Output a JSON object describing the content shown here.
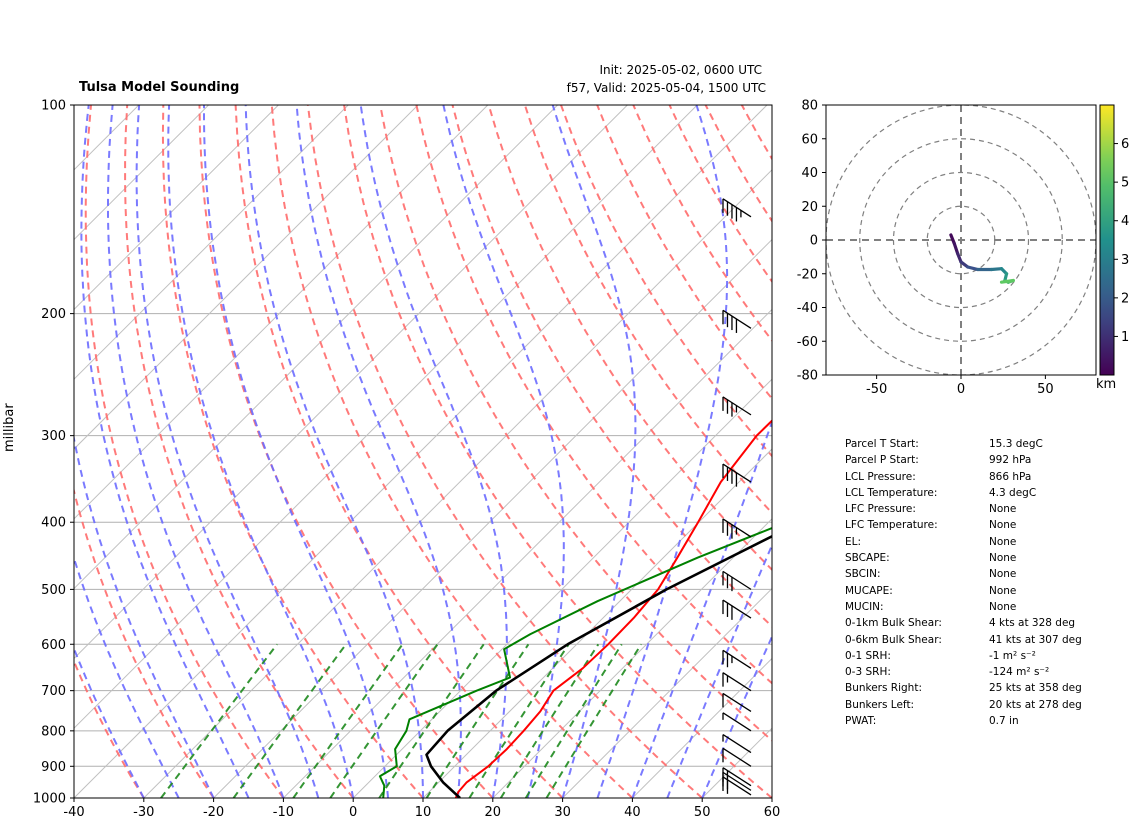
{
  "header": {
    "title": "Tulsa Model Sounding",
    "init": "Init: 2025-05-02, 0600 UTC",
    "valid": "f57, Valid: 2025-05-04, 1500 UTC"
  },
  "chart_data": [
    {
      "type": "line",
      "chart": "skew-t",
      "ylabel": "millibar",
      "y_scale": "log",
      "ylim": [
        1000,
        100
      ],
      "xlim": [
        -40,
        60
      ],
      "xticks": [
        -40,
        -30,
        -20,
        -10,
        0,
        10,
        20,
        30,
        40,
        50,
        60
      ],
      "yticks": [
        1000,
        900,
        800,
        700,
        600,
        500,
        400,
        300,
        200,
        100
      ],
      "grid": true,
      "series": [
        {
          "role": "temperature",
          "color": "#ff0000",
          "points": [
            [
              1000,
              14.7
            ],
            [
              980,
              14.2
            ],
            [
              950,
              14.0
            ],
            [
              900,
              14.8
            ],
            [
              850,
              15.0
            ],
            [
              800,
              14.8
            ],
            [
              750,
              14.4
            ],
            [
              700,
              13.3
            ],
            [
              650,
              14.3
            ],
            [
              600,
              14.5
            ],
            [
              550,
              14.4
            ],
            [
              500,
              13.8
            ],
            [
              450,
              12.0
            ],
            [
              400,
              9.9
            ],
            [
              350,
              7.4
            ],
            [
              300,
              5.9
            ],
            [
              250,
              6.1
            ],
            [
              220,
              7.8
            ],
            [
              190,
              12.7
            ],
            [
              160,
              19.7
            ],
            [
              140,
              25.6
            ],
            [
              120,
              32.7
            ],
            [
              110,
              38.6
            ],
            [
              100,
              42.2
            ]
          ]
        },
        {
          "role": "dewpoint",
          "color": "#008000",
          "points": [
            [
              1000,
              4.3
            ],
            [
              960,
              2.7
            ],
            [
              930,
              0.7
            ],
            [
              900,
              1.7
            ],
            [
              850,
              -1.0
            ],
            [
              800,
              -2.0
            ],
            [
              770,
              -3.2
            ],
            [
              700,
              2.3
            ],
            [
              670,
              5.2
            ],
            [
              640,
              2.8
            ],
            [
              610,
              0.3
            ],
            [
              580,
              1.9
            ],
            [
              520,
              6.8
            ],
            [
              450,
              14.9
            ],
            [
              400,
              22.6
            ],
            [
              350,
              31.7
            ],
            [
              300,
              42.5
            ],
            [
              260,
              52.1
            ],
            [
              230,
              61.8
            ],
            [
              200,
              71.0
            ],
            [
              180,
              80.1
            ],
            [
              155,
              90.0
            ],
            [
              110,
              112.9
            ],
            [
              100,
              117.4
            ]
          ]
        },
        {
          "role": "parcel",
          "color": "#000000",
          "points": [
            [
              1000,
              15.3
            ],
            [
              950,
              10.7
            ],
            [
              900,
              6.6
            ],
            [
              866,
              4.3
            ],
            [
              800,
              3.9
            ],
            [
              700,
              5.1
            ],
            [
              600,
              8.7
            ],
            [
              500,
              15.0
            ],
            [
              400,
              24.5
            ],
            [
              300,
              38.1
            ],
            [
              250,
              48.4
            ],
            [
              200,
              60.0
            ],
            [
              150,
              75.8
            ],
            [
              120,
              88.0
            ],
            [
              100,
              98.5
            ]
          ]
        }
      ],
      "wind_barbs": [
        {
          "p": 990,
          "speed_kt": 22
        },
        {
          "p": 975,
          "speed_kt": 18
        },
        {
          "p": 960,
          "speed_kt": 15
        },
        {
          "p": 900,
          "speed_kt": 10
        },
        {
          "p": 860,
          "speed_kt": 5
        },
        {
          "p": 800,
          "speed_kt": 5
        },
        {
          "p": 750,
          "speed_kt": 10
        },
        {
          "p": 700,
          "speed_kt": 15
        },
        {
          "p": 650,
          "speed_kt": 25
        },
        {
          "p": 550,
          "speed_kt": 30
        },
        {
          "p": 500,
          "speed_kt": 30
        },
        {
          "p": 420,
          "speed_kt": 35
        },
        {
          "p": 350,
          "speed_kt": 40
        },
        {
          "p": 280,
          "speed_kt": 35
        },
        {
          "p": 210,
          "speed_kt": 40
        },
        {
          "p": 145,
          "speed_kt": 45
        }
      ]
    },
    {
      "type": "line",
      "chart": "hodograph",
      "xlim": [
        -80,
        80
      ],
      "ylim": [
        -80,
        80
      ],
      "xticks": [
        -50,
        0,
        50
      ],
      "yticks": [
        -80,
        -60,
        -40,
        -20,
        0,
        20,
        40,
        60,
        80
      ],
      "rings": [
        20,
        40,
        60,
        80
      ],
      "colorbar": {
        "label": "km",
        "ticks": [
          1,
          2,
          3,
          4,
          5,
          6
        ],
        "range": [
          0,
          7
        ]
      },
      "points": [
        {
          "u": -6,
          "v": 3,
          "h": 0.1
        },
        {
          "u": -4,
          "v": -2,
          "h": 0.3
        },
        {
          "u": -2,
          "v": -8,
          "h": 0.6
        },
        {
          "u": 0,
          "v": -13,
          "h": 1.0
        },
        {
          "u": 4,
          "v": -16,
          "h": 1.5
        },
        {
          "u": 10,
          "v": -17.5,
          "h": 2.0
        },
        {
          "u": 18,
          "v": -17.5,
          "h": 2.5
        },
        {
          "u": 24,
          "v": -17,
          "h": 3.0
        },
        {
          "u": 27,
          "v": -20,
          "h": 3.5
        },
        {
          "u": 26,
          "v": -24,
          "h": 4.0
        },
        {
          "u": 28,
          "v": -25,
          "h": 4.5
        },
        {
          "u": 31,
          "v": -24,
          "h": 5.0
        },
        {
          "u": 24,
          "v": -25,
          "h": 5.5
        }
      ]
    }
  ],
  "parameters": [
    {
      "label": "Parcel T Start:",
      "value": "15.3 degC"
    },
    {
      "label": "Parcel P Start:",
      "value": "992 hPa"
    },
    {
      "label": "LCL Pressure:",
      "value": "866 hPa"
    },
    {
      "label": "LCL Temperature:",
      "value": "4.3 degC"
    },
    {
      "label": "LFC Pressure:",
      "value": "None"
    },
    {
      "label": "LFC Temperature:",
      "value": "None"
    },
    {
      "label": "EL:",
      "value": "None"
    },
    {
      "label": "SBCAPE:",
      "value": "None"
    },
    {
      "label": "SBCIN:",
      "value": "None"
    },
    {
      "label": "MUCAPE:",
      "value": "None"
    },
    {
      "label": "MUCIN:",
      "value": "None"
    },
    {
      "label": "0-1km Bulk Shear:",
      "value": "4 kts at 328 deg"
    },
    {
      "label": "0-6km Bulk Shear:",
      "value": "41 kts at 307 deg"
    },
    {
      "label": "0-1 SRH:",
      "value": "-1 m² s⁻²"
    },
    {
      "label": "0-3 SRH:",
      "value": "-124 m² s⁻²"
    },
    {
      "label": "Bunkers Right:",
      "value": "25 kts at 358 deg"
    },
    {
      "label": "Bunkers Left:",
      "value": "20 kts at 278 deg"
    },
    {
      "label": "PWAT:",
      "value": "0.7 in"
    }
  ],
  "hodo_unit_label": "km"
}
